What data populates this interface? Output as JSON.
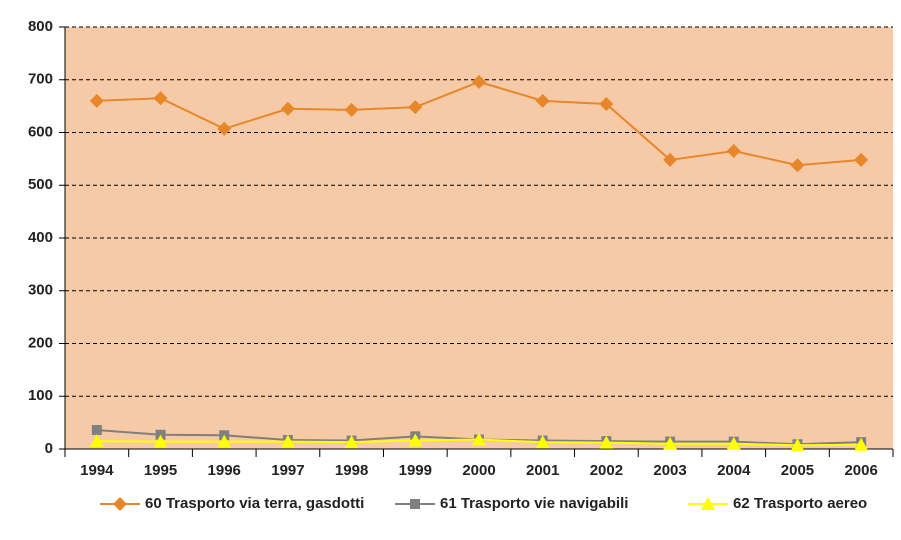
{
  "chart_data": {
    "type": "line",
    "categories": [
      "1994",
      "1995",
      "1996",
      "1997",
      "1998",
      "1999",
      "2000",
      "2001",
      "2002",
      "2003",
      "2004",
      "2005",
      "2006"
    ],
    "series": [
      {
        "name": "60 Trasporto via terra, gasdotti",
        "color": "#e8862a",
        "marker": "diamond",
        "values": [
          660,
          665,
          607,
          645,
          643,
          648,
          696,
          660,
          654,
          548,
          565,
          538,
          548
        ]
      },
      {
        "name": "61 Trasporto vie navigabili",
        "color": "#808080",
        "marker": "square",
        "values": [
          36,
          27,
          26,
          17,
          16,
          24,
          18,
          16,
          15,
          14,
          14,
          9,
          13
        ]
      },
      {
        "name": "62 Trasporto aereo",
        "color": "#ffff00",
        "marker": "triangle",
        "values": [
          15,
          14,
          14,
          14,
          13,
          16,
          18,
          13,
          12,
          10,
          10,
          7,
          8
        ]
      }
    ],
    "ylim": [
      0,
      800
    ],
    "yticks": [
      0,
      100,
      200,
      300,
      400,
      500,
      600,
      700,
      800
    ],
    "grid": true,
    "legend": "bottom",
    "plot_background": "#f6caa6"
  }
}
